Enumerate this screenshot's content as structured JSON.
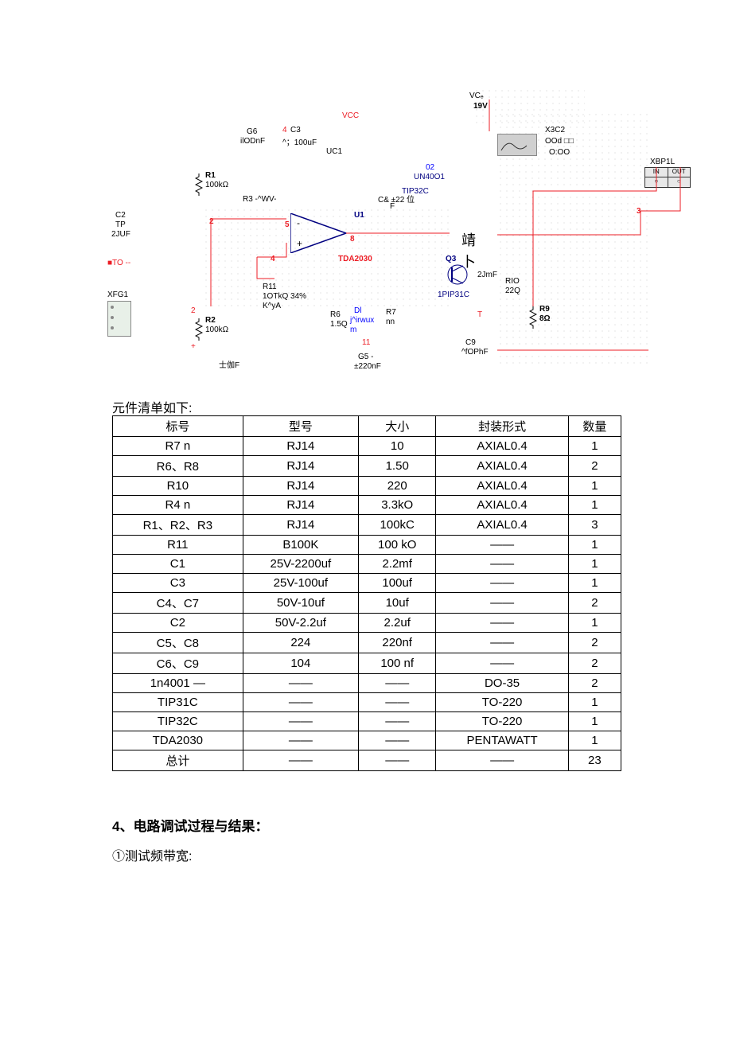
{
  "schematic": {
    "labels": {
      "vcc": "VCC",
      "vc6": "VCₑ",
      "v19": "19V",
      "g6": "G6",
      "ilodnf": "ilODnF",
      "c3num": "4",
      "c3": "C3",
      "c3val": "^；100uF",
      "uc1": "UC1",
      "c2": "C2",
      "tp": "TP",
      "juf2": "2JUF",
      "to": "■TO --",
      "r1": "R1",
      "r1val": "100kΩ",
      "r2": "R2",
      "r2val": "100kΩ",
      "r2num": "2",
      "r3": "R3 -^WV-",
      "xfg1": "XFG1",
      "n5": "5",
      "n2": "2",
      "n4": "4",
      "n8": "8",
      "n11": "11",
      "u1": "U1",
      "tda2030": "TDA2030",
      "r11": "R11",
      "r11val": "1OTkQ 34%",
      "kya": "K^yA",
      "shijia": "士伽F",
      "r6": "R6",
      "r6val": "1.5Q",
      "dl": "Dl",
      "jirwux": "j^irwux",
      "m": "m",
      "g5": "G5 -",
      "g5val": "±220nF",
      "r7": "R7",
      "r7val": "nn",
      "c8": "C& ±22 位",
      "c8f": "F",
      "tip32c": "TIP32C",
      "o2": "02",
      "un4001": "UN40O1",
      "q3": "Q3",
      "jingbu": "靖",
      "bu": "卜",
      "jmf2": "2JmF",
      "pip31c": "1PIP31C",
      "t": "T",
      "c9": "C9",
      "c9val": "^fOPhF",
      "rio": "RIO",
      "rioval": "22Q",
      "r9": "R9",
      "r9val": "8Ω",
      "x3c2": "X3C2",
      "ood": "OOd □□",
      "ooo": "O:OO",
      "xbp1l": "XBP1L",
      "in": "IN",
      "out": "OUT",
      "n3": "3"
    },
    "colors": {
      "red": "#ec1c24",
      "blue": "#0000ff",
      "darkblue": "#000080",
      "black": "#000000",
      "grid": "#cccccc",
      "bg": "#ffffff"
    }
  },
  "bom": {
    "caption": "元件清单如下:",
    "headers": [
      "标号",
      "型号",
      "大小",
      "封装形式",
      "数量"
    ],
    "rows": [
      [
        "R7 n",
        "RJ14",
        "10",
        "AXIAL0.4",
        "1"
      ],
      [
        "R6、R8",
        "RJ14",
        "1.50",
        "AXIAL0.4",
        "2"
      ],
      [
        "R10",
        "RJ14",
        "220",
        "AXIAL0.4",
        "1"
      ],
      [
        "R4      n",
        "RJ14",
        "3.3kO",
        "AXIAL0.4",
        "1"
      ],
      [
        "R1、R2、R3",
        "RJ14",
        "100kC",
        "AXIAL0.4",
        "3"
      ],
      [
        "R11",
        "B100K",
        "100 kO",
        "——",
        "1"
      ],
      [
        "C1",
        "25V-2200uf",
        "2.2mf",
        "——",
        "1"
      ],
      [
        "C3",
        "25V-100uf",
        "100uf",
        "——",
        "1"
      ],
      [
        "C4、C7",
        "50V-10uf",
        "10uf",
        "——",
        "2"
      ],
      [
        "C2",
        "50V-2.2uf",
        "2.2uf",
        "——",
        "1"
      ],
      [
        "C5、C8",
        "224",
        "220nf",
        "——",
        "2"
      ],
      [
        "C6、C9",
        "104",
        "100 nf",
        "——",
        "2"
      ],
      [
        "1n4001 —",
        "——",
        "——",
        "DO-35",
        "2"
      ],
      [
        "TIP31C",
        "——",
        "——",
        "TO-220",
        "1"
      ],
      [
        "TIP32C",
        "——",
        "——",
        "TO-220",
        "1"
      ],
      [
        "TDA2030",
        "——",
        "——",
        "PENTAWATT",
        "1"
      ],
      [
        "总计",
        "——",
        "——",
        "——",
        "23"
      ]
    ],
    "col_widths": [
      "128px",
      "128px",
      "128px",
      "128px",
      "128px"
    ]
  },
  "sections": {
    "s4_title": "4、电路调试过程与结果：",
    "s4_sub1": "①测试频带宽:"
  }
}
